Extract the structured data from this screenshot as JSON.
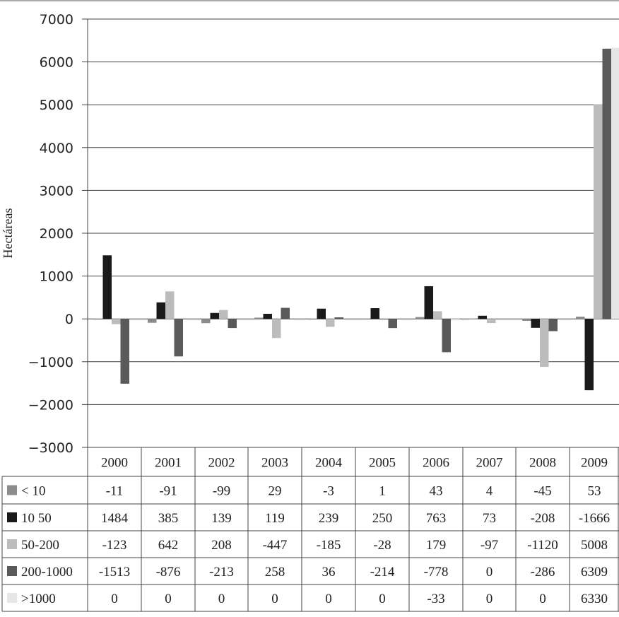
{
  "chart_data": {
    "type": "bar",
    "ylabel": "Hectáreas",
    "ylim": [
      -3000,
      7000
    ],
    "yticks": [
      7000,
      6000,
      5000,
      4000,
      3000,
      2000,
      1000,
      0,
      -1000,
      -2000,
      -3000
    ],
    "ytick_labels": [
      "7000",
      "6000",
      "5000",
      "4000",
      "3000",
      "2000",
      "1000",
      "0",
      "−1000",
      "−2000",
      "−3000"
    ],
    "grid": true,
    "legend": "table-below",
    "categories": [
      "2000",
      "2001",
      "2002",
      "2003",
      "2004",
      "2005",
      "2006",
      "2007",
      "2008",
      "2009"
    ],
    "series": [
      {
        "name": "< 10",
        "color": "#8c8c8c",
        "values": [
          -11,
          -91,
          -99,
          29,
          -3,
          1,
          43,
          4,
          -45,
          53
        ],
        "labels": [
          "-11",
          "-91",
          "-99",
          "29",
          "-3",
          "1",
          "43",
          "4",
          "-45",
          "53"
        ]
      },
      {
        "name": "10 50",
        "color": "#1a1a1a",
        "values": [
          1484,
          385,
          139,
          119,
          239,
          250,
          763,
          73,
          -208,
          -1666
        ],
        "labels": [
          "1484",
          "385",
          "139",
          "119",
          "239",
          "250",
          "763",
          "73",
          "-208",
          "-1666"
        ]
      },
      {
        "name": "50-200",
        "color": "#bcbcbc",
        "values": [
          -123,
          642,
          208,
          -447,
          -185,
          -28,
          179,
          -97,
          -1120,
          5008
        ],
        "labels": [
          "-123",
          "642",
          "208",
          "-447",
          "-185",
          "-28",
          "179",
          "-97",
          "-1120",
          "5008"
        ]
      },
      {
        "name": "200-1000",
        "color": "#5a5a5a",
        "values": [
          -1513,
          -876,
          -213,
          258,
          36,
          -214,
          -778,
          0,
          -286,
          6309
        ],
        "labels": [
          "-1513",
          "-876",
          "-213",
          "258",
          "36",
          "-214",
          "-778",
          "0",
          "-286",
          "6309"
        ]
      },
      {
        "name": ">1000",
        "color": "#e6e6e6",
        "values": [
          0,
          0,
          0,
          0,
          0,
          0,
          -33,
          0,
          0,
          6330
        ],
        "labels": [
          "0",
          "0",
          "0",
          "0",
          "0",
          "0",
          "-33",
          "0",
          "0",
          "6330"
        ]
      }
    ]
  }
}
